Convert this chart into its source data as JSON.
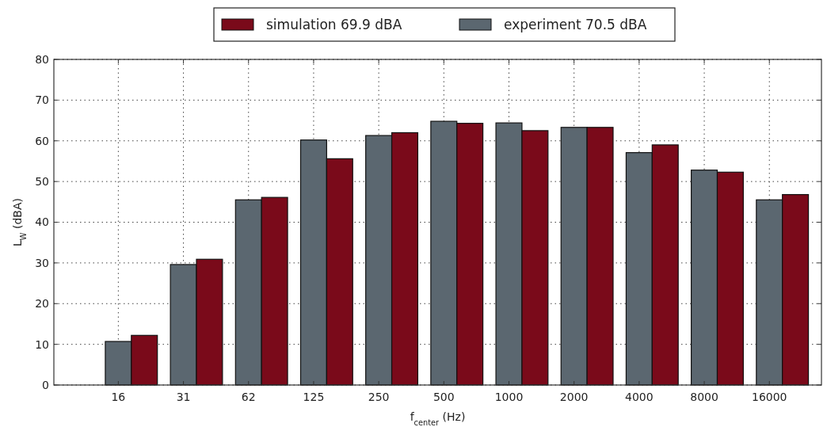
{
  "chart_data": {
    "type": "bar",
    "xlabel": "f$_{center}$ (Hz)",
    "ylabel": "L$_{W}$ (dBA)",
    "categories": [
      "16",
      "31",
      "62",
      "125",
      "250",
      "500",
      "1000",
      "2000",
      "4000",
      "8000",
      "16000"
    ],
    "series": [
      {
        "name": "experiment 70.5 dBA",
        "color": "#5b6770",
        "values": [
          10.7,
          29.6,
          45.5,
          60.2,
          61.3,
          64.8,
          64.4,
          63.3,
          57.1,
          52.8,
          45.5
        ]
      },
      {
        "name": "simulation 69.9 dBA",
        "color": "#7a0a1a",
        "values": [
          12.2,
          30.9,
          46.1,
          55.6,
          62.0,
          64.3,
          62.5,
          63.3,
          59.0,
          52.3,
          46.8
        ]
      }
    ],
    "ylim": [
      0,
      80
    ],
    "yticks": [
      0,
      10,
      20,
      30,
      40,
      50,
      60,
      70,
      80
    ],
    "grid": true,
    "legend": "top"
  }
}
